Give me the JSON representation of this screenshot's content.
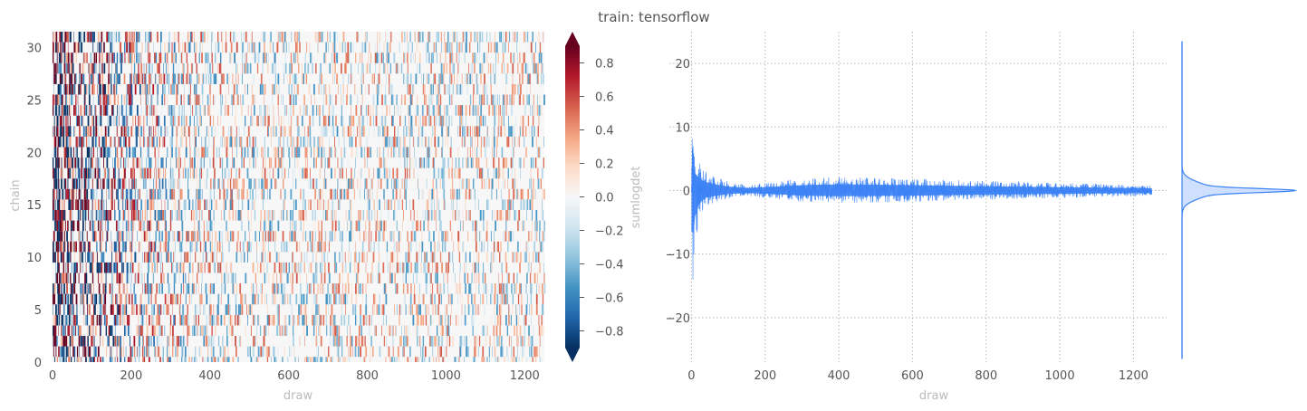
{
  "figure": {
    "title": "train: tensorflow"
  },
  "chart_data": [
    {
      "type": "heatmap",
      "xlabel": "draw",
      "ylabel": "chain",
      "xlim": [
        0,
        1250
      ],
      "ylim": [
        0,
        31.5
      ],
      "n_chains": 32,
      "n_draws": 1250,
      "xticks": [
        0,
        200,
        400,
        600,
        800,
        1000,
        1200
      ],
      "yticks": [
        0,
        5,
        10,
        15,
        20,
        25,
        30
      ],
      "colorbar": {
        "label": "sumlogdet",
        "colormap": "RdBu_r",
        "vmin": -0.9,
        "vmax": 0.9,
        "extend": "both",
        "ticks": [
          -0.8,
          -0.6,
          -0.4,
          -0.2,
          0.0,
          0.2,
          0.4,
          0.6,
          0.8
        ],
        "tick_labels": [
          "−0.8",
          "−0.6",
          "−0.4",
          "−0.2",
          "0.0",
          "0.2",
          "0.4",
          "0.6",
          "0.8"
        ]
      }
    },
    {
      "type": "line",
      "xlabel": "draw",
      "ylabel": "",
      "xlim": [
        -60,
        1290
      ],
      "ylim": [
        -27,
        25
      ],
      "xticks": [
        0,
        200,
        400,
        600,
        800,
        1000,
        1200
      ],
      "yticks": [
        -20,
        -10,
        0,
        10,
        20
      ],
      "ytick_labels": [
        "−20",
        "−10",
        "0",
        "10",
        "20"
      ],
      "grid": true,
      "color": "#3b82f6",
      "series": [
        {
          "x": [
            0,
            5,
            10,
            20,
            30,
            40,
            60,
            80,
            100,
            150,
            200,
            300,
            400,
            600,
            800,
            1000,
            1200,
            1250
          ],
          "y_upper": [
            8.0,
            8.5,
            6.0,
            4.5,
            3.5,
            3.0,
            2.3,
            1.8,
            1.4,
            0.9,
            1.2,
            1.9,
            2.2,
            1.9,
            1.5,
            1.2,
            0.9,
            0.8
          ],
          "y_lower": [
            -14.0,
            -15.5,
            -9.0,
            -5.0,
            -3.5,
            -2.5,
            -2.0,
            -1.6,
            -1.2,
            -0.9,
            -1.1,
            -1.8,
            -2.0,
            -1.8,
            -1.4,
            -1.2,
            -0.9,
            -0.8
          ],
          "y_mean": [
            0,
            0,
            0,
            0,
            0,
            0,
            0,
            0,
            0,
            0,
            0,
            0,
            0,
            0,
            0,
            0,
            0,
            0
          ]
        }
      ],
      "marginal_distribution": {
        "type": "kde",
        "orientation": "horizontal",
        "y_range": [
          -26.5,
          23.5
        ],
        "peak_at": 0.0,
        "color": "#3b82f6"
      }
    }
  ]
}
